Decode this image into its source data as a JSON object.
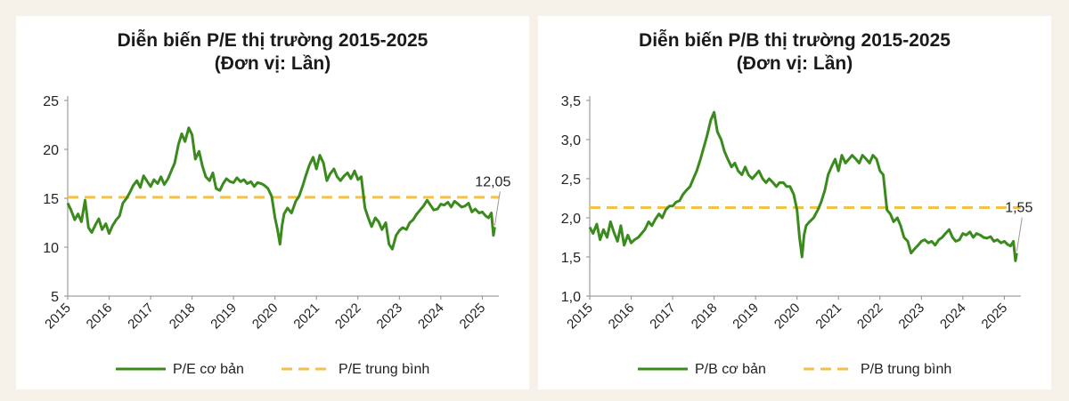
{
  "chart_data": [
    {
      "type": "line",
      "title": "Diễn biến P/E thị trường 2015-2025",
      "subtitle": "(Đơn vị: Lần)",
      "xlabel": "",
      "ylabel": "",
      "x_ticks": [
        "2015",
        "2016",
        "2017",
        "2018",
        "2019",
        "2020",
        "2021",
        "2022",
        "2023",
        "2024",
        "2025"
      ],
      "y_ticks": [
        "25",
        "20",
        "15",
        "10",
        "5"
      ],
      "ylim": [
        5,
        25
      ],
      "xlim": [
        2015,
        2025.4
      ],
      "grid": false,
      "legend": "bottom",
      "series": [
        {
          "name": "P/E cơ bản",
          "style": "solid",
          "color": "#3a8a1e",
          "x": [
            2015.0,
            2015.08,
            2015.17,
            2015.25,
            2015.33,
            2015.42,
            2015.5,
            2015.58,
            2015.67,
            2015.75,
            2015.83,
            2015.92,
            2016.0,
            2016.08,
            2016.17,
            2016.25,
            2016.33,
            2016.42,
            2016.5,
            2016.58,
            2016.67,
            2016.75,
            2016.83,
            2016.92,
            2017.0,
            2017.08,
            2017.17,
            2017.25,
            2017.33,
            2017.42,
            2017.5,
            2017.58,
            2017.67,
            2017.75,
            2017.83,
            2017.92,
            2018.0,
            2018.08,
            2018.17,
            2018.25,
            2018.33,
            2018.42,
            2018.5,
            2018.58,
            2018.67,
            2018.75,
            2018.83,
            2018.92,
            2019.0,
            2019.08,
            2019.17,
            2019.25,
            2019.33,
            2019.42,
            2019.5,
            2019.58,
            2019.67,
            2019.75,
            2019.83,
            2019.92,
            2020.0,
            2020.06,
            2020.12,
            2020.17,
            2020.22,
            2020.3,
            2020.4,
            2020.5,
            2020.58,
            2020.67,
            2020.75,
            2020.83,
            2020.92,
            2021.0,
            2021.08,
            2021.17,
            2021.25,
            2021.33,
            2021.42,
            2021.5,
            2021.58,
            2021.67,
            2021.75,
            2021.83,
            2021.92,
            2022.0,
            2022.08,
            2022.17,
            2022.25,
            2022.33,
            2022.42,
            2022.5,
            2022.58,
            2022.67,
            2022.75,
            2022.83,
            2022.92,
            2023.0,
            2023.08,
            2023.17,
            2023.25,
            2023.33,
            2023.42,
            2023.5,
            2023.58,
            2023.67,
            2023.75,
            2023.83,
            2023.92,
            2024.0,
            2024.08,
            2024.17,
            2024.25,
            2024.33,
            2024.42,
            2024.5,
            2024.58,
            2024.67,
            2024.75,
            2024.83,
            2024.92,
            2025.0,
            2025.08,
            2025.15,
            2025.22,
            2025.27,
            2025.3
          ],
          "y": [
            14.5,
            13.8,
            12.8,
            13.4,
            12.6,
            14.8,
            12.0,
            11.5,
            12.3,
            12.9,
            11.8,
            12.4,
            11.4,
            12.2,
            12.8,
            13.2,
            14.5,
            15.0,
            15.6,
            16.3,
            16.8,
            16.1,
            17.3,
            16.7,
            16.2,
            16.9,
            16.5,
            17.2,
            16.4,
            17.0,
            17.8,
            18.6,
            20.5,
            21.6,
            20.8,
            22.2,
            21.5,
            19.0,
            19.8,
            18.3,
            17.2,
            16.8,
            17.6,
            16.0,
            15.8,
            16.5,
            17.0,
            16.7,
            16.6,
            17.1,
            16.7,
            16.9,
            16.5,
            16.7,
            16.2,
            16.6,
            16.5,
            16.3,
            16.0,
            15.2,
            13.0,
            11.8,
            10.3,
            12.2,
            13.4,
            14.0,
            13.5,
            14.7,
            15.2,
            16.3,
            17.4,
            18.4,
            19.2,
            18.0,
            19.4,
            18.6,
            16.8,
            17.5,
            18.0,
            17.2,
            16.8,
            17.3,
            17.6,
            17.0,
            17.8,
            16.9,
            17.2,
            14.0,
            13.0,
            12.1,
            13.0,
            12.6,
            11.8,
            12.5,
            10.3,
            9.8,
            11.2,
            11.7,
            12.0,
            11.8,
            12.5,
            12.8,
            13.4,
            13.8,
            14.2,
            14.8,
            14.3,
            13.8,
            13.9,
            14.4,
            14.3,
            14.6,
            14.1,
            14.7,
            14.4,
            14.1,
            14.2,
            14.5,
            13.6,
            13.9,
            13.5,
            13.6,
            13.2,
            13.0,
            13.5,
            11.2,
            12.05
          ]
        },
        {
          "name": "P/E trung bình",
          "style": "dashed",
          "color": "#f2c14a",
          "value": 15.1
        }
      ],
      "annotations": [
        {
          "text": "12,05",
          "x": 2025.3,
          "y": 12.05
        }
      ]
    },
    {
      "type": "line",
      "title": "Diễn biến P/B thị trường 2015-2025",
      "subtitle": "(Đơn vị: Lần)",
      "xlabel": "",
      "ylabel": "",
      "x_ticks": [
        "2015",
        "2016",
        "2017",
        "2018",
        "2019",
        "2020",
        "2021",
        "2022",
        "2023",
        "2024",
        "2025"
      ],
      "y_ticks": [
        "3,5",
        "3,0",
        "2,5",
        "2,0",
        "1,5",
        "1,0"
      ],
      "ylim": [
        1.0,
        3.5
      ],
      "xlim": [
        2015,
        2025.4
      ],
      "grid": false,
      "legend": "bottom",
      "series": [
        {
          "name": "P/B cơ bản",
          "style": "solid",
          "color": "#3a8a1e",
          "x": [
            2015.0,
            2015.08,
            2015.17,
            2015.25,
            2015.33,
            2015.42,
            2015.5,
            2015.58,
            2015.67,
            2015.75,
            2015.83,
            2015.92,
            2016.0,
            2016.08,
            2016.17,
            2016.25,
            2016.33,
            2016.42,
            2016.5,
            2016.58,
            2016.67,
            2016.75,
            2016.83,
            2016.92,
            2017.0,
            2017.08,
            2017.17,
            2017.25,
            2017.33,
            2017.42,
            2017.5,
            2017.58,
            2017.67,
            2017.75,
            2017.83,
            2017.92,
            2018.0,
            2018.08,
            2018.17,
            2018.25,
            2018.33,
            2018.42,
            2018.5,
            2018.58,
            2018.67,
            2018.75,
            2018.83,
            2018.92,
            2019.0,
            2019.08,
            2019.17,
            2019.25,
            2019.33,
            2019.42,
            2019.5,
            2019.58,
            2019.67,
            2019.75,
            2019.83,
            2019.92,
            2020.0,
            2020.06,
            2020.12,
            2020.17,
            2020.22,
            2020.3,
            2020.4,
            2020.5,
            2020.58,
            2020.67,
            2020.75,
            2020.83,
            2020.92,
            2021.0,
            2021.08,
            2021.17,
            2021.25,
            2021.33,
            2021.42,
            2021.5,
            2021.58,
            2021.67,
            2021.75,
            2021.83,
            2021.92,
            2022.0,
            2022.08,
            2022.17,
            2022.25,
            2022.33,
            2022.42,
            2022.5,
            2022.58,
            2022.67,
            2022.75,
            2022.83,
            2022.92,
            2023.0,
            2023.08,
            2023.17,
            2023.25,
            2023.33,
            2023.42,
            2023.5,
            2023.58,
            2023.67,
            2023.75,
            2023.83,
            2023.92,
            2024.0,
            2024.08,
            2024.17,
            2024.25,
            2024.33,
            2024.42,
            2024.5,
            2024.58,
            2024.67,
            2024.75,
            2024.83,
            2024.92,
            2025.0,
            2025.08,
            2025.15,
            2025.22,
            2025.27,
            2025.3
          ],
          "y": [
            1.88,
            1.8,
            1.92,
            1.72,
            1.85,
            1.75,
            1.95,
            1.82,
            1.7,
            1.9,
            1.65,
            1.78,
            1.68,
            1.72,
            1.75,
            1.8,
            1.85,
            1.95,
            1.9,
            1.98,
            2.05,
            2.0,
            2.1,
            2.15,
            2.15,
            2.2,
            2.22,
            2.3,
            2.35,
            2.4,
            2.5,
            2.6,
            2.75,
            2.9,
            3.05,
            3.25,
            3.35,
            3.1,
            3.0,
            2.85,
            2.75,
            2.65,
            2.7,
            2.6,
            2.55,
            2.65,
            2.55,
            2.5,
            2.55,
            2.6,
            2.5,
            2.45,
            2.5,
            2.45,
            2.4,
            2.45,
            2.45,
            2.4,
            2.4,
            2.3,
            2.1,
            1.75,
            1.5,
            1.78,
            1.9,
            1.95,
            2.0,
            2.1,
            2.2,
            2.35,
            2.55,
            2.65,
            2.75,
            2.6,
            2.8,
            2.7,
            2.75,
            2.8,
            2.75,
            2.7,
            2.8,
            2.75,
            2.7,
            2.8,
            2.75,
            2.6,
            2.55,
            2.1,
            2.05,
            1.95,
            2.0,
            1.9,
            1.75,
            1.7,
            1.55,
            1.6,
            1.65,
            1.7,
            1.72,
            1.68,
            1.7,
            1.65,
            1.72,
            1.75,
            1.8,
            1.85,
            1.75,
            1.7,
            1.72,
            1.8,
            1.78,
            1.82,
            1.75,
            1.8,
            1.78,
            1.75,
            1.74,
            1.76,
            1.7,
            1.72,
            1.68,
            1.7,
            1.66,
            1.64,
            1.7,
            1.45,
            1.55
          ]
        },
        {
          "name": "P/B trung bình",
          "style": "dashed",
          "color": "#f2c14a",
          "value": 2.13
        }
      ],
      "annotations": [
        {
          "text": "1,55",
          "x": 2025.3,
          "y": 1.55
        }
      ]
    }
  ]
}
